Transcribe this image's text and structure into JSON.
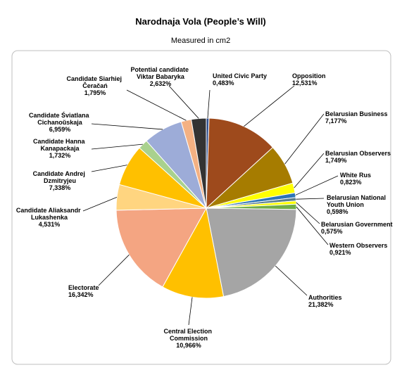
{
  "chart_data": {
    "type": "pie",
    "title": "Narodnaja Vola (People’s Will)",
    "subtitle": "Measured in cm2",
    "categories": [
      "United Civic Party",
      "Opposition",
      "Belarusian Business",
      "Belarusian Observers",
      "White Rus",
      "Belarusian National Youth Union",
      "Belarusian Government",
      "Western Observers",
      "Authorities",
      "Central Election Commission",
      "Electorate",
      "Candidate Aliaksandr Lukashenka",
      "Candidate Andrej Dzmitryjeu",
      "Candidate Hanna Kanapackaja",
      "Candidate Śviatlana Cichanoŭskaja",
      "Candidate Siarhiej Čeračań",
      "Potential candidate Viktar Babaryka"
    ],
    "values": [
      0.483,
      12.531,
      7.177,
      1.749,
      0.823,
      0.598,
      0.575,
      0.921,
      21.382,
      10.966,
      16.342,
      4.531,
      7.338,
      1.732,
      6.959,
      1.795,
      2.632
    ],
    "value_labels": [
      "0,483%",
      "12,531%",
      "7,177%",
      "1,749%",
      "0,823%",
      "0,598%",
      "0,575%",
      "0,921%",
      "21,382%",
      "10,966%",
      "16,342%",
      "4,531%",
      "7,338%",
      "1,732%",
      "6,959%",
      "1,795%",
      "2,632%"
    ],
    "colors": [
      "#2f4f8f",
      "#9e4a1c",
      "#a67c00",
      "#ffff00",
      "#2e75b6",
      "#5b7e8c",
      "#ffff00",
      "#70ad47",
      "#a5a5a5",
      "#ffc000",
      "#f4a582",
      "#ffd580",
      "#ffc000",
      "#a9d18e",
      "#9dacd8",
      "#f4b183",
      "#333333"
    ]
  }
}
